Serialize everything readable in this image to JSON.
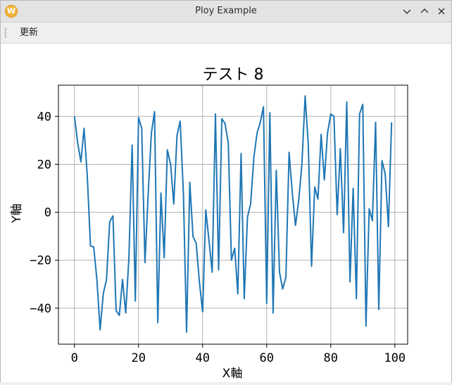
{
  "window": {
    "title": "Ploy Example"
  },
  "menu": {
    "items": [
      "更新"
    ]
  },
  "icons": {
    "app": "app-w-icon",
    "minimize": "chevron-down-icon",
    "maximize": "chevron-up-icon",
    "close": "close-icon"
  },
  "chart_data": {
    "type": "line",
    "title": "テスト 8",
    "xlabel": "X軸",
    "ylabel": "Y軸",
    "xlim": [
      -5,
      104
    ],
    "ylim": [
      -55,
      53
    ],
    "xticks": [
      0,
      20,
      40,
      60,
      80,
      100
    ],
    "yticks": [
      -40,
      -20,
      0,
      20,
      40
    ],
    "grid": true,
    "color": "#1f77b4",
    "x": [
      0,
      1,
      2,
      3,
      4,
      5,
      6,
      7,
      8,
      9,
      10,
      11,
      12,
      13,
      14,
      15,
      16,
      17,
      18,
      19,
      20,
      21,
      22,
      23,
      24,
      25,
      26,
      27,
      28,
      29,
      30,
      31,
      32,
      33,
      34,
      35,
      36,
      37,
      38,
      39,
      40,
      41,
      42,
      43,
      44,
      45,
      46,
      47,
      48,
      49,
      50,
      51,
      52,
      53,
      54,
      55,
      56,
      57,
      58,
      59,
      60,
      61,
      62,
      63,
      64,
      65,
      66,
      67,
      68,
      69,
      70,
      71,
      72,
      73,
      74,
      75,
      76,
      77,
      78,
      79,
      80,
      81,
      82,
      83,
      84,
      85,
      86,
      87,
      88,
      89,
      90,
      91,
      92,
      93,
      94,
      95,
      96,
      97,
      98,
      99
    ],
    "y": [
      40,
      29,
      21,
      35,
      15,
      -14,
      -14.5,
      -28,
      -49,
      -34,
      -28,
      -4,
      -1.5,
      -41,
      -43,
      -28,
      -42,
      -19,
      28,
      -37,
      39.5,
      35,
      -21,
      7,
      33,
      42,
      -46,
      8,
      -19,
      26,
      20,
      3.5,
      32,
      38,
      8,
      -50,
      12.5,
      -10,
      -13,
      -29,
      -41.5,
      1,
      -12,
      -25,
      41,
      -24,
      39,
      37,
      29,
      -20,
      -15,
      -34,
      24.5,
      -36,
      -2,
      3.5,
      23,
      33,
      37.5,
      44,
      -38,
      41.5,
      -42,
      17.5,
      -25,
      -32,
      -27,
      25,
      8,
      -5.5,
      5,
      20,
      48.5,
      28,
      -22.5,
      10.5,
      5.5,
      32.5,
      13.5,
      33,
      41,
      40,
      -1,
      26.5,
      -8.5,
      46,
      -29,
      10,
      -36,
      41,
      45,
      -47.5,
      1.5,
      -3.5,
      37.5,
      -40.5,
      21.5,
      16,
      -6,
      37.5
    ]
  }
}
